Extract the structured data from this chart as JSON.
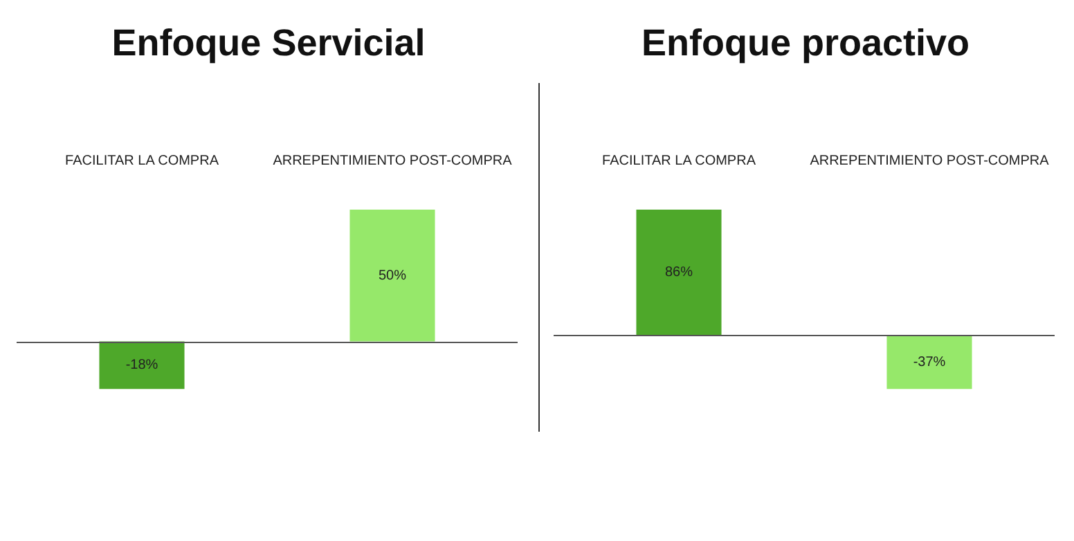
{
  "chart_data": [
    {
      "type": "bar",
      "title": "Enfoque Servicial",
      "categories": [
        "FACILITAR LA COMPRA",
        "ARREPENTIMIENTO POST-COMPRA"
      ],
      "values": [
        -18,
        50
      ],
      "colors": [
        "#4ea82a",
        "#96e86a"
      ],
      "value_labels": [
        "-18%",
        "50%"
      ]
    },
    {
      "type": "bar",
      "title": "Enfoque proactivo",
      "categories": [
        "FACILITAR LA COMPRA",
        "ARREPENTIMIENTO POST-COMPRA"
      ],
      "values": [
        86,
        -37
      ],
      "colors": [
        "#4ea82a",
        "#96e86a"
      ],
      "value_labels": [
        "86%",
        "-37%"
      ]
    }
  ]
}
